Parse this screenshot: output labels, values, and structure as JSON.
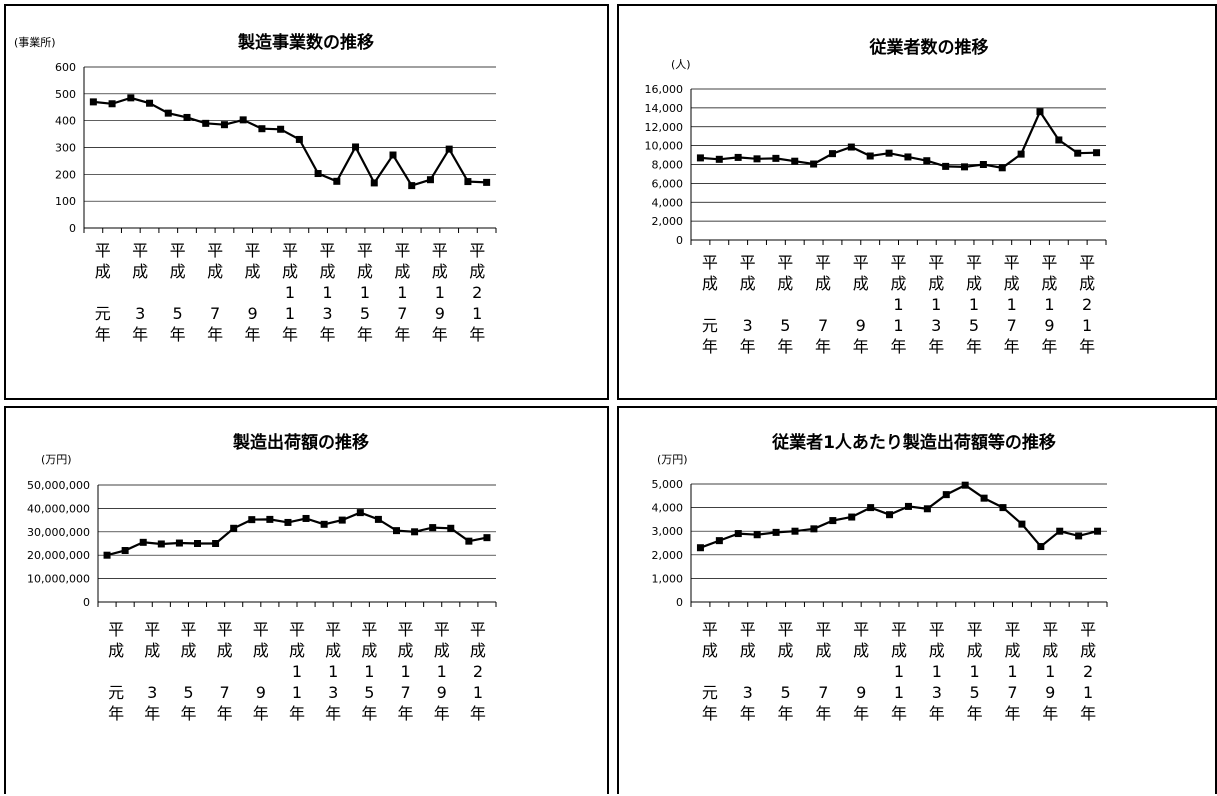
{
  "chart_data": [
    {
      "type": "line",
      "title": "製造事業数の推移",
      "ylabel": "(事業所)",
      "ylim": [
        0,
        600
      ],
      "yticks": [
        "0",
        "100",
        "200",
        "300",
        "400",
        "500",
        "600"
      ],
      "xlabels": [
        [
          "平",
          "成",
          "",
          "元",
          "年"
        ],
        [
          "平",
          "成",
          "",
          "3",
          "年"
        ],
        [
          "平",
          "成",
          "",
          "5",
          "年"
        ],
        [
          "平",
          "成",
          "",
          "7",
          "年"
        ],
        [
          "平",
          "成",
          "",
          "9",
          "年"
        ],
        [
          "平",
          "成",
          "1",
          "1",
          "年"
        ],
        [
          "平",
          "成",
          "1",
          "3",
          "年"
        ],
        [
          "平",
          "成",
          "1",
          "5",
          "年"
        ],
        [
          "平",
          "成",
          "1",
          "7",
          "年"
        ],
        [
          "平",
          "成",
          "1",
          "9",
          "年"
        ],
        [
          "平",
          "成",
          "2",
          "1",
          "年"
        ]
      ],
      "series": [
        {
          "values": [
            470,
            463,
            485,
            465,
            428,
            412,
            390,
            385,
            403,
            370,
            368,
            330,
            203,
            174,
            302,
            168,
            272,
            158,
            180,
            294,
            173,
            170
          ]
        }
      ]
    },
    {
      "type": "line",
      "title": "従業者数の推移",
      "ylabel": "(人)",
      "ylim": [
        0,
        16000
      ],
      "yticks": [
        "0",
        "2,000",
        "4,000",
        "6,000",
        "8,000",
        "10,000",
        "12,000",
        "14,000",
        "16,000"
      ],
      "xlabels": [
        [
          "平",
          "成",
          "",
          "元",
          "年"
        ],
        [
          "平",
          "成",
          "",
          "3",
          "年"
        ],
        [
          "平",
          "成",
          "",
          "5",
          "年"
        ],
        [
          "平",
          "成",
          "",
          "7",
          "年"
        ],
        [
          "平",
          "成",
          "",
          "9",
          "年"
        ],
        [
          "平",
          "成",
          "1",
          "1",
          "年"
        ],
        [
          "平",
          "成",
          "1",
          "3",
          "年"
        ],
        [
          "平",
          "成",
          "1",
          "5",
          "年"
        ],
        [
          "平",
          "成",
          "1",
          "7",
          "年"
        ],
        [
          "平",
          "成",
          "1",
          "9",
          "年"
        ],
        [
          "平",
          "成",
          "2",
          "1",
          "年"
        ]
      ],
      "series": [
        {
          "values": [
            8700,
            8550,
            8750,
            8600,
            8650,
            8350,
            8050,
            9150,
            9850,
            8900,
            9200,
            8800,
            8400,
            7800,
            7750,
            8000,
            7650,
            9100,
            13600,
            10600,
            9200,
            9250
          ]
        }
      ]
    },
    {
      "type": "line",
      "title": "製造出荷額の推移",
      "ylabel": "(万円)",
      "ylim": [
        0,
        50000000
      ],
      "yticks": [
        "0",
        "10,000,000",
        "20,000,000",
        "30,000,000",
        "40,000,000",
        "50,000,000"
      ],
      "xlabels": [
        [
          "平",
          "成",
          "",
          "元",
          "年"
        ],
        [
          "平",
          "成",
          "",
          "3",
          "年"
        ],
        [
          "平",
          "成",
          "",
          "5",
          "年"
        ],
        [
          "平",
          "成",
          "",
          "7",
          "年"
        ],
        [
          "平",
          "成",
          "",
          "9",
          "年"
        ],
        [
          "平",
          "成",
          "1",
          "1",
          "年"
        ],
        [
          "平",
          "成",
          "1",
          "3",
          "年"
        ],
        [
          "平",
          "成",
          "1",
          "5",
          "年"
        ],
        [
          "平",
          "成",
          "1",
          "7",
          "年"
        ],
        [
          "平",
          "成",
          "1",
          "9",
          "年"
        ],
        [
          "平",
          "成",
          "2",
          "1",
          "年"
        ]
      ],
      "series": [
        {
          "values": [
            20000000,
            22000000,
            25500000,
            24800000,
            25200000,
            25000000,
            25000000,
            31500000,
            35200000,
            35300000,
            34000000,
            35700000,
            33200000,
            35000000,
            38200000,
            35300000,
            30500000,
            30000000,
            31800000,
            31500000,
            26000000,
            27500000
          ]
        }
      ]
    },
    {
      "type": "line",
      "title": "従業者1人あたり製造出荷額等の推移",
      "ylabel": "(万円)",
      "ylim": [
        0,
        5000
      ],
      "yticks": [
        "0",
        "1,000",
        "2,000",
        "3,000",
        "4,000",
        "5,000"
      ],
      "xlabels": [
        [
          "平",
          "成",
          "",
          "元",
          "年"
        ],
        [
          "平",
          "成",
          "",
          "3",
          "年"
        ],
        [
          "平",
          "成",
          "",
          "5",
          "年"
        ],
        [
          "平",
          "成",
          "",
          "7",
          "年"
        ],
        [
          "平",
          "成",
          "",
          "9",
          "年"
        ],
        [
          "平",
          "成",
          "1",
          "1",
          "年"
        ],
        [
          "平",
          "成",
          "1",
          "3",
          "年"
        ],
        [
          "平",
          "成",
          "1",
          "5",
          "年"
        ],
        [
          "平",
          "成",
          "1",
          "7",
          "年"
        ],
        [
          "平",
          "成",
          "1",
          "9",
          "年"
        ],
        [
          "平",
          "成",
          "2",
          "1",
          "年"
        ]
      ],
      "series": [
        {
          "values": [
            2300,
            2600,
            2900,
            2850,
            2950,
            3000,
            3100,
            3450,
            3600,
            4000,
            3700,
            4050,
            3950,
            4550,
            4950,
            4400,
            4000,
            3300,
            2350,
            3000,
            2800,
            3000
          ]
        }
      ]
    }
  ]
}
